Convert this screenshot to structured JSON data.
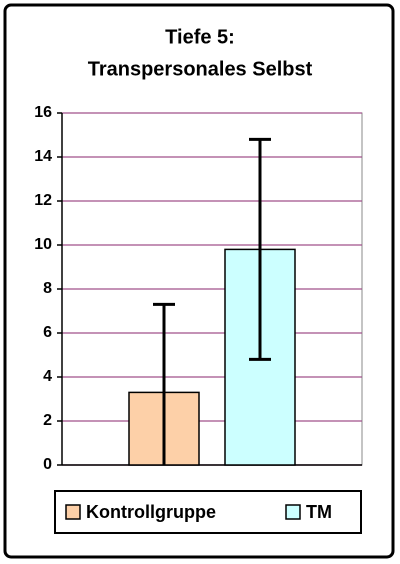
{
  "chart_data": {
    "type": "bar",
    "title": [
      "Tiefe 5:",
      "Transpersonales Selbst"
    ],
    "categories": [
      null
    ],
    "series": [
      {
        "name": "Kontrollgruppe",
        "color": "#fdd0a8",
        "values": [
          3.3
        ],
        "errors": [
          4.0
        ]
      },
      {
        "name": "TM",
        "color": "#ccffff",
        "values": [
          9.8
        ],
        "errors": [
          5.0
        ]
      }
    ],
    "ylim": [
      0,
      16
    ],
    "yticks": [
      0,
      2,
      4,
      6,
      8,
      10,
      12,
      14,
      16
    ],
    "grid": true,
    "legend": "bottom"
  }
}
